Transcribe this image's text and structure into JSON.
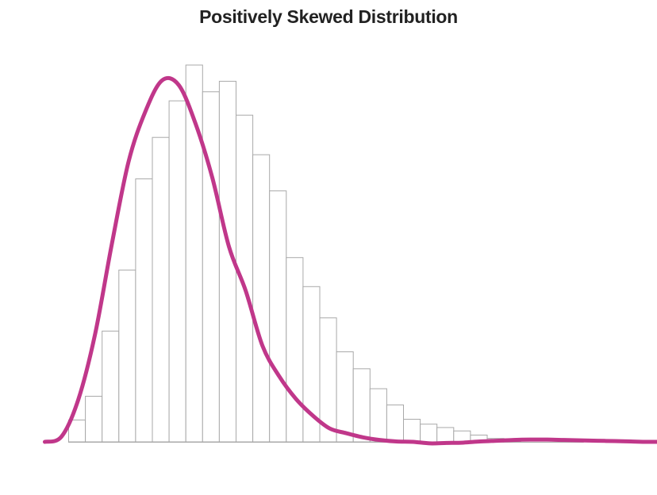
{
  "chart_data": {
    "type": "bar",
    "title": "Positively Skewed Distribution",
    "xlabel": "",
    "ylabel": "",
    "axes_visible": false,
    "grid": false,
    "legend": "none",
    "ylim": [
      0,
      100
    ],
    "bins": {
      "start": 0,
      "width": 1,
      "values": [
        5.8,
        12.1,
        29.4,
        45.6,
        69.8,
        80.8,
        90.5,
        100,
        92.9,
        95.7,
        86.7,
        76.2,
        66.6,
        48.9,
        41.2,
        32.9,
        23.9,
        19.4,
        14.1,
        9.8,
        6.0,
        4.7,
        3.8,
        2.9,
        1.8,
        0.9,
        0.5
      ]
    },
    "curve": {
      "name": "density",
      "color": "#c0378a",
      "x": [
        -1.4,
        -0.4,
        0.6,
        1.6,
        2.6,
        3.6,
        4.6,
        5.6,
        6.6,
        7.6,
        8.6,
        9.6,
        10.6,
        11.6,
        12.6,
        13.6,
        14.6,
        15.6,
        16.6,
        17.6,
        18.6,
        19.6,
        20.6,
        21.6,
        22.6,
        23.6,
        24.6,
        25.6,
        26.6,
        27.6,
        28.6,
        29.6,
        30.6,
        31.6,
        32.6,
        33.6,
        34.6,
        35.6
      ],
      "y": [
        0,
        1.4,
        11.2,
        28.5,
        52.4,
        74.3,
        87.6,
        95.9,
        94.7,
        84.5,
        70.2,
        51.8,
        40.1,
        25.5,
        17.4,
        11.4,
        7.0,
        3.6,
        2.3,
        1.2,
        0.5,
        0.1,
        0,
        -0.4,
        -0.3,
        -0.2,
        0.1,
        0.3,
        0.5,
        0.6,
        0.6,
        0.5,
        0.4,
        0.3,
        0.2,
        0.1,
        0,
        0
      ]
    },
    "colors": {
      "bar_fill": "#ffffff",
      "bar_stroke": "#a9a9a9",
      "title": "#222222"
    }
  }
}
